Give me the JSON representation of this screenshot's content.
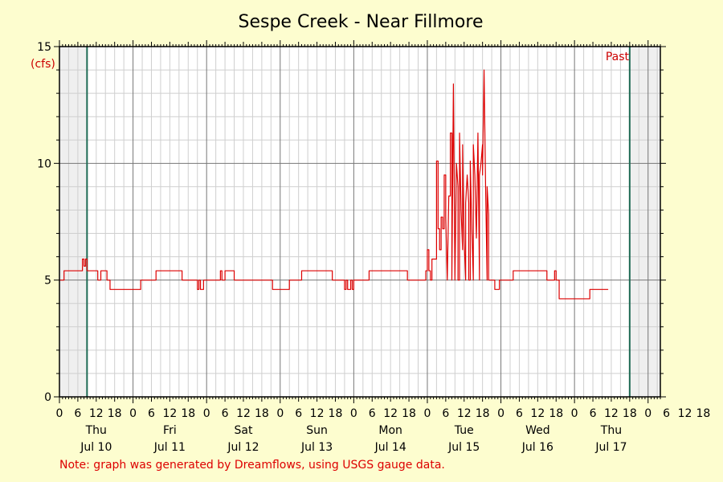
{
  "chart_data": {
    "type": "line",
    "title": "Sespe Creek - Near Fillmore",
    "ylabel": "(cfs)",
    "ylim": [
      0,
      15
    ],
    "xlim_hours": [
      0,
      196
    ],
    "y_ticks": [
      "0",
      "5",
      "10",
      "15"
    ],
    "y_tick_values": [
      0,
      5,
      10,
      15
    ],
    "hour_labels": [
      "0",
      "6",
      "12",
      "18",
      "0",
      "6",
      "12",
      "18",
      "0",
      "6",
      "12",
      "18",
      "0",
      "6",
      "12",
      "18",
      "0",
      "6",
      "12",
      "18",
      "0",
      "6",
      "12",
      "18",
      "0",
      "6",
      "12",
      "18",
      "0",
      "6",
      "12",
      "18",
      "0",
      "6",
      "12",
      "18"
    ],
    "days": [
      {
        "weekday": "Thu",
        "date": "Jul 10"
      },
      {
        "weekday": "Fri",
        "date": "Jul 11"
      },
      {
        "weekday": "Sat",
        "date": "Jul 12"
      },
      {
        "weekday": "Sun",
        "date": "Jul 13"
      },
      {
        "weekday": "Mon",
        "date": "Jul 14"
      },
      {
        "weekday": "Tue",
        "date": "Jul 15"
      },
      {
        "weekday": "Wed",
        "date": "Jul 16"
      },
      {
        "weekday": "Thu",
        "date": "Jul 17"
      }
    ],
    "shaded_start_hours": 9,
    "shaded_end_hours": 186,
    "past_label": "Past",
    "grid": true,
    "series": [
      {
        "color": "#dd0000",
        "points": [
          [
            0,
            5.0
          ],
          [
            1.5,
            5.0
          ],
          [
            1.5,
            5.4
          ],
          [
            7.5,
            5.4
          ],
          [
            7.5,
            5.9
          ],
          [
            8,
            5.9
          ],
          [
            8,
            5.6
          ],
          [
            8.5,
            5.6
          ],
          [
            8.5,
            5.9
          ],
          [
            9,
            5.9
          ],
          [
            9,
            5.4
          ],
          [
            12.5,
            5.4
          ],
          [
            12.5,
            5.0
          ],
          [
            13.5,
            5.0
          ],
          [
            13.5,
            5.4
          ],
          [
            15.5,
            5.4
          ],
          [
            15.5,
            5.0
          ],
          [
            16.5,
            5.0
          ],
          [
            16.5,
            4.6
          ],
          [
            26.5,
            4.6
          ],
          [
            26.5,
            5.0
          ],
          [
            31.5,
            5.0
          ],
          [
            31.5,
            5.4
          ],
          [
            40,
            5.4
          ],
          [
            40,
            5.0
          ],
          [
            45,
            5.0
          ],
          [
            45,
            4.6
          ],
          [
            45.5,
            4.6
          ],
          [
            45.5,
            5.0
          ],
          [
            46,
            5.0
          ],
          [
            46,
            4.6
          ],
          [
            47,
            4.6
          ],
          [
            47,
            5.0
          ],
          [
            52.5,
            5.0
          ],
          [
            52.5,
            5.4
          ],
          [
            53,
            5.4
          ],
          [
            53,
            5.0
          ],
          [
            54,
            5.0
          ],
          [
            54,
            5.4
          ],
          [
            57,
            5.4
          ],
          [
            57,
            5.0
          ],
          [
            69.5,
            5.0
          ],
          [
            69.5,
            4.6
          ],
          [
            75,
            4.6
          ],
          [
            75,
            5.0
          ],
          [
            79,
            5.0
          ],
          [
            79,
            5.4
          ],
          [
            89,
            5.4
          ],
          [
            89,
            5.0
          ],
          [
            93,
            5.0
          ],
          [
            93,
            4.6
          ],
          [
            93.5,
            4.6
          ],
          [
            93.5,
            5.0
          ],
          [
            94,
            5.0
          ],
          [
            94,
            4.6
          ],
          [
            95,
            4.6
          ],
          [
            95,
            5.0
          ],
          [
            95.5,
            5.0
          ],
          [
            95.5,
            4.6
          ],
          [
            96,
            4.6
          ],
          [
            96,
            5.0
          ],
          [
            101,
            5.0
          ],
          [
            101,
            5.4
          ],
          [
            113.5,
            5.4
          ],
          [
            113.5,
            5.0
          ],
          [
            119.5,
            5.0
          ],
          [
            119.5,
            5.4
          ],
          [
            120,
            5.4
          ],
          [
            120,
            6.3
          ],
          [
            120.5,
            6.3
          ],
          [
            120.5,
            5.4
          ],
          [
            121,
            5.4
          ],
          [
            121,
            5.0
          ],
          [
            121.5,
            5.0
          ],
          [
            121.5,
            5.9
          ],
          [
            123,
            5.9
          ],
          [
            123,
            10.1
          ],
          [
            123.5,
            10.1
          ],
          [
            123.5,
            7.2
          ],
          [
            124,
            7.2
          ],
          [
            124,
            6.3
          ],
          [
            124.5,
            6.3
          ],
          [
            124.5,
            7.7
          ],
          [
            125,
            7.7
          ],
          [
            125,
            7.2
          ],
          [
            125.5,
            7.2
          ],
          [
            125.5,
            9.5
          ],
          [
            126,
            9.5
          ],
          [
            126,
            7.7
          ],
          [
            126.5,
            5.0
          ],
          [
            127,
            8.6
          ],
          [
            127.5,
            8.6
          ],
          [
            127.5,
            11.3
          ],
          [
            128,
            11.3
          ],
          [
            128,
            5.0
          ],
          [
            128.5,
            13.4
          ],
          [
            129,
            5.0
          ],
          [
            129.5,
            10.0
          ],
          [
            130,
            9.0
          ],
          [
            130,
            5.0
          ],
          [
            130.5,
            5.0
          ],
          [
            130.5,
            11.3
          ],
          [
            131,
            8.0
          ],
          [
            131.5,
            6.3
          ],
          [
            131.5,
            10.8
          ],
          [
            132,
            6.7
          ],
          [
            132.5,
            5.0
          ],
          [
            132.5,
            8.3
          ],
          [
            133,
            9.5
          ],
          [
            133.5,
            8.3
          ],
          [
            133.5,
            5.0
          ],
          [
            134,
            5.0
          ],
          [
            134,
            10.1
          ],
          [
            134.5,
            7.2
          ],
          [
            135,
            5.0
          ],
          [
            135,
            10.8
          ],
          [
            135.5,
            9.5
          ],
          [
            136,
            6.8
          ],
          [
            136.5,
            11.3
          ],
          [
            137,
            5.0
          ],
          [
            137,
            9.5
          ],
          [
            137.5,
            10.0
          ],
          [
            138,
            10.8
          ],
          [
            138,
            9.5
          ],
          [
            138.5,
            14.0
          ],
          [
            139,
            9.0
          ],
          [
            139.5,
            5.0
          ],
          [
            139.5,
            9.0
          ],
          [
            140,
            7.8
          ],
          [
            140,
            5.0
          ],
          [
            142,
            5.0
          ],
          [
            142,
            4.6
          ],
          [
            143.5,
            4.6
          ],
          [
            143.5,
            5.0
          ],
          [
            148,
            5.0
          ],
          [
            148,
            5.4
          ],
          [
            159,
            5.4
          ],
          [
            159,
            5.0
          ],
          [
            161.5,
            5.0
          ],
          [
            161.5,
            5.4
          ],
          [
            162,
            5.4
          ],
          [
            162,
            5.0
          ],
          [
            163,
            5.0
          ],
          [
            163,
            4.2
          ],
          [
            173,
            4.2
          ],
          [
            173,
            4.6
          ],
          [
            179,
            4.6
          ]
        ]
      }
    ]
  },
  "note": "Note: graph was generated by Dreamflows, using USGS gauge data."
}
